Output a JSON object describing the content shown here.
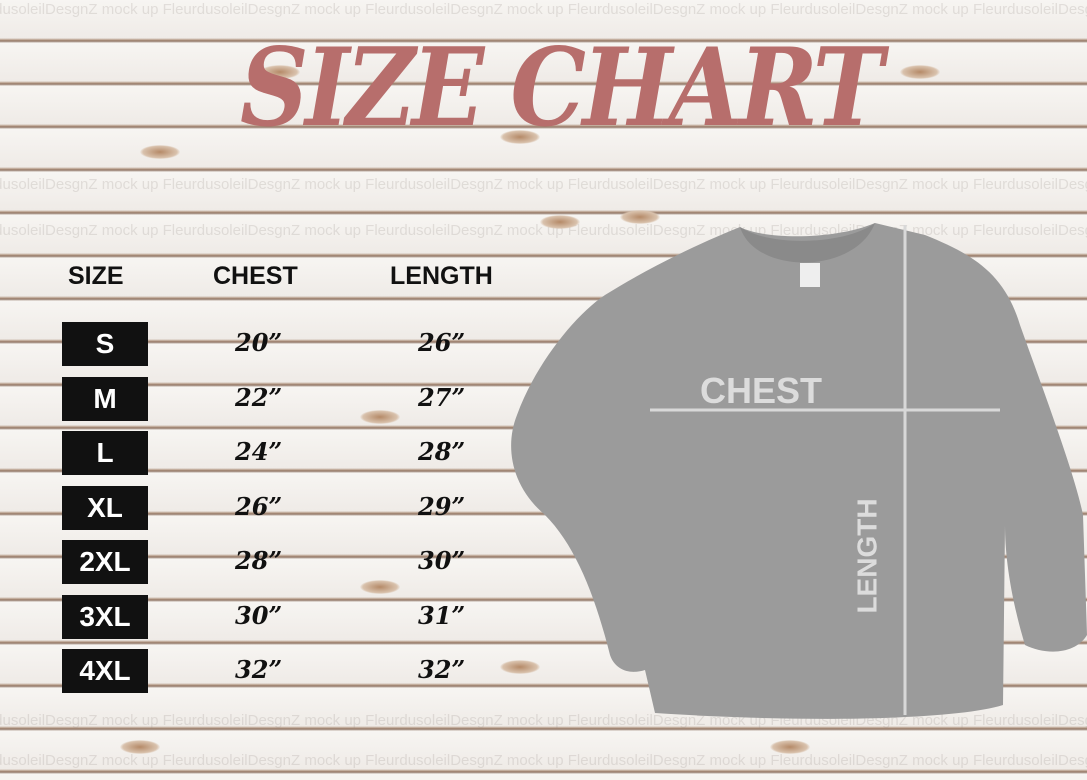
{
  "title": "SIZE CHART",
  "watermark": "FleurdusoleilDesgnZ mock up",
  "colors": {
    "title": "#b76e6c",
    "badge": "#111111",
    "sweater": "#9a9a9a"
  },
  "table": {
    "headers": [
      "SIZE",
      "CHEST",
      "LENGTH"
    ],
    "rows": [
      {
        "size": "S",
        "chest": "20”",
        "length": "26”"
      },
      {
        "size": "M",
        "chest": "22”",
        "length": "27”"
      },
      {
        "size": "L",
        "chest": "24”",
        "length": "28”"
      },
      {
        "size": "XL",
        "chest": "26”",
        "length": "29”"
      },
      {
        "size": "2XL",
        "chest": "28”",
        "length": "30”"
      },
      {
        "size": "3XL",
        "chest": "30”",
        "length": "31”"
      },
      {
        "size": "4XL",
        "chest": "32”",
        "length": "32”"
      }
    ]
  },
  "diagram": {
    "chest_label": "CHEST",
    "length_label": "LENGTH",
    "garment": "sweatshirt"
  }
}
